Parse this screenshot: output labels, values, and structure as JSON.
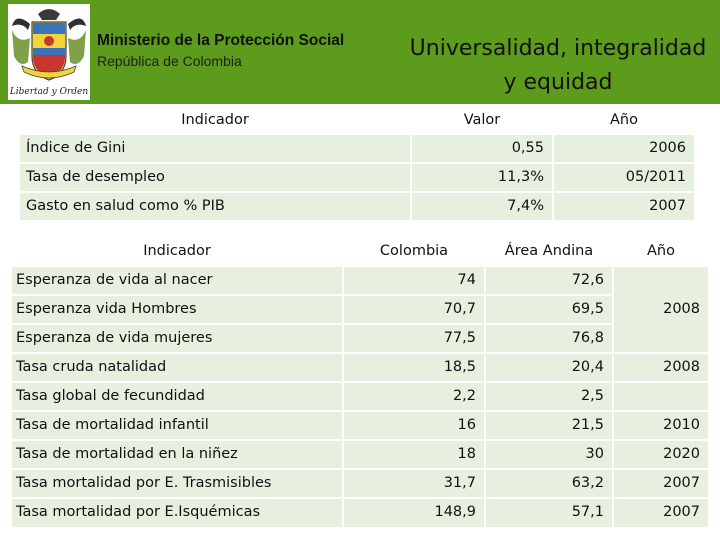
{
  "header": {
    "ministry": "Ministerio de la Protección Social",
    "republic": "República de Colombia",
    "slogan_line1": "Universalidad, integralidad",
    "slogan_line2": "y equidad",
    "logo_caption": "Libertad y Orden",
    "accent_color": "#5d9b1d"
  },
  "table1": {
    "headers": [
      "Indicador",
      "Valor",
      "Año"
    ],
    "rows": [
      {
        "label": "Índice de Gini",
        "value": "0,55",
        "year": "2006"
      },
      {
        "label": "Tasa de desempleo",
        "value": "11,3%",
        "year": "05/2011"
      },
      {
        "label": "Gasto en salud como % PIB",
        "value": "7,4%",
        "year": "2007"
      }
    ]
  },
  "table2": {
    "headers": [
      "Indicador",
      "Colombia",
      "Área Andina",
      "Año"
    ],
    "rows": [
      {
        "label": "Esperanza de vida al nacer",
        "colombia": "74",
        "andina": "72,6",
        "year": ""
      },
      {
        "label": "Esperanza vida Hombres",
        "colombia": "70,7",
        "andina": "69,5",
        "year": "2008"
      },
      {
        "label": "Esperanza de vida mujeres",
        "colombia": "77,5",
        "andina": "76,8",
        "year": ""
      },
      {
        "label": "Tasa cruda natalidad",
        "colombia": "18,5",
        "andina": "20,4",
        "year": "2008"
      },
      {
        "label": "Tasa  global de fecundidad",
        "colombia": "2,2",
        "andina": "2,5",
        "year": ""
      },
      {
        "label": "Tasa de mortalidad infantil",
        "colombia": "16",
        "andina": "21,5",
        "year": "2010"
      },
      {
        "label": "Tasa de mortalidad en la niñez",
        "colombia": "18",
        "andina": "30",
        "year": "2020"
      },
      {
        "label": "Tasa mortalidad por E. Trasmisibles",
        "colombia": "31,7",
        "andina": "63,2",
        "year": "2007"
      },
      {
        "label": "Tasa mortalidad por E.Isquémicas",
        "colombia": "148,9",
        "andina": "57,1",
        "year": "2007"
      }
    ]
  }
}
